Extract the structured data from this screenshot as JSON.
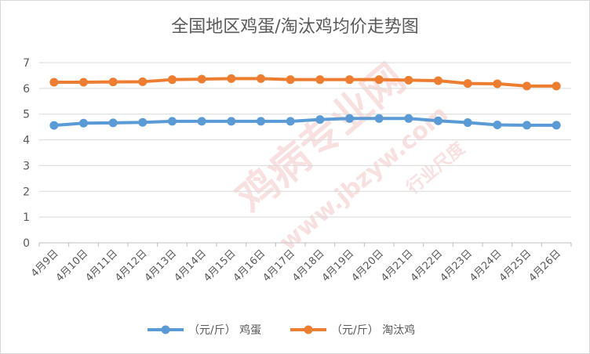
{
  "chart_data": {
    "type": "line",
    "title": "全国地区鸡蛋/淘汰鸡均价走势图",
    "categories": [
      "4月9日",
      "4月10日",
      "4月11日",
      "4月12日",
      "4月13日",
      "4月14日",
      "4月15日",
      "4月16日",
      "4月17日",
      "4月18日",
      "4月19日",
      "4月20日",
      "4月21日",
      "4月22日",
      "4月23日",
      "4月24日",
      "4月25日",
      "4月26日"
    ],
    "series": [
      {
        "name": "（元/斤） 鸡蛋",
        "color": "#5b9bd5",
        "values": [
          4.56,
          4.65,
          4.66,
          4.68,
          4.72,
          4.72,
          4.72,
          4.72,
          4.72,
          4.79,
          4.83,
          4.83,
          4.83,
          4.74,
          4.67,
          4.58,
          4.57,
          4.57
        ]
      },
      {
        "name": "（元/斤） 淘汰鸡",
        "color": "#ed7d31",
        "values": [
          6.24,
          6.24,
          6.25,
          6.26,
          6.34,
          6.36,
          6.38,
          6.38,
          6.34,
          6.34,
          6.34,
          6.34,
          6.32,
          6.3,
          6.19,
          6.18,
          6.09,
          6.09
        ]
      }
    ],
    "ylim": [
      0,
      7
    ],
    "yticks": [
      0,
      1,
      2,
      3,
      4,
      5,
      6,
      7
    ],
    "grid": true,
    "legend": "bottom"
  },
  "watermark": {
    "text1": "鸡病专业网",
    "text2": "www.jbzyw.com",
    "text3": "行业尺度"
  }
}
